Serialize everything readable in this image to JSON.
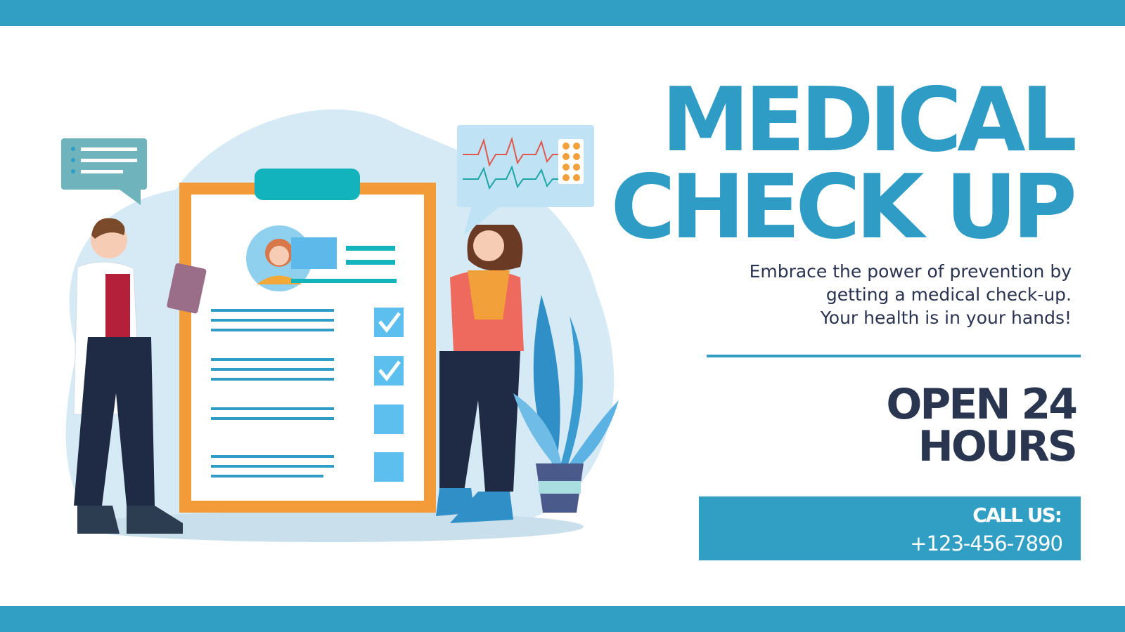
{
  "banner": {
    "title_line1": "MEDICAL",
    "title_line2": "CHECK UP",
    "tagline": [
      "Embrace the power of prevention by",
      "getting a medical check-up.",
      "Your health is in your hands!"
    ],
    "hours_line1": "OPEN 24",
    "hours_line2": "HOURS",
    "call_label": "CALL US:",
    "phone": "+123-456-7890"
  },
  "colors": {
    "accent": "#319fc4",
    "dark_text": "#2a3650",
    "background": "#ffffff"
  },
  "illustration": {
    "description_icons": [
      "doctor-figure",
      "patient-figure",
      "clipboard-checklist",
      "heart-rate-monitor",
      "chat-bubble",
      "potted-plant"
    ]
  }
}
